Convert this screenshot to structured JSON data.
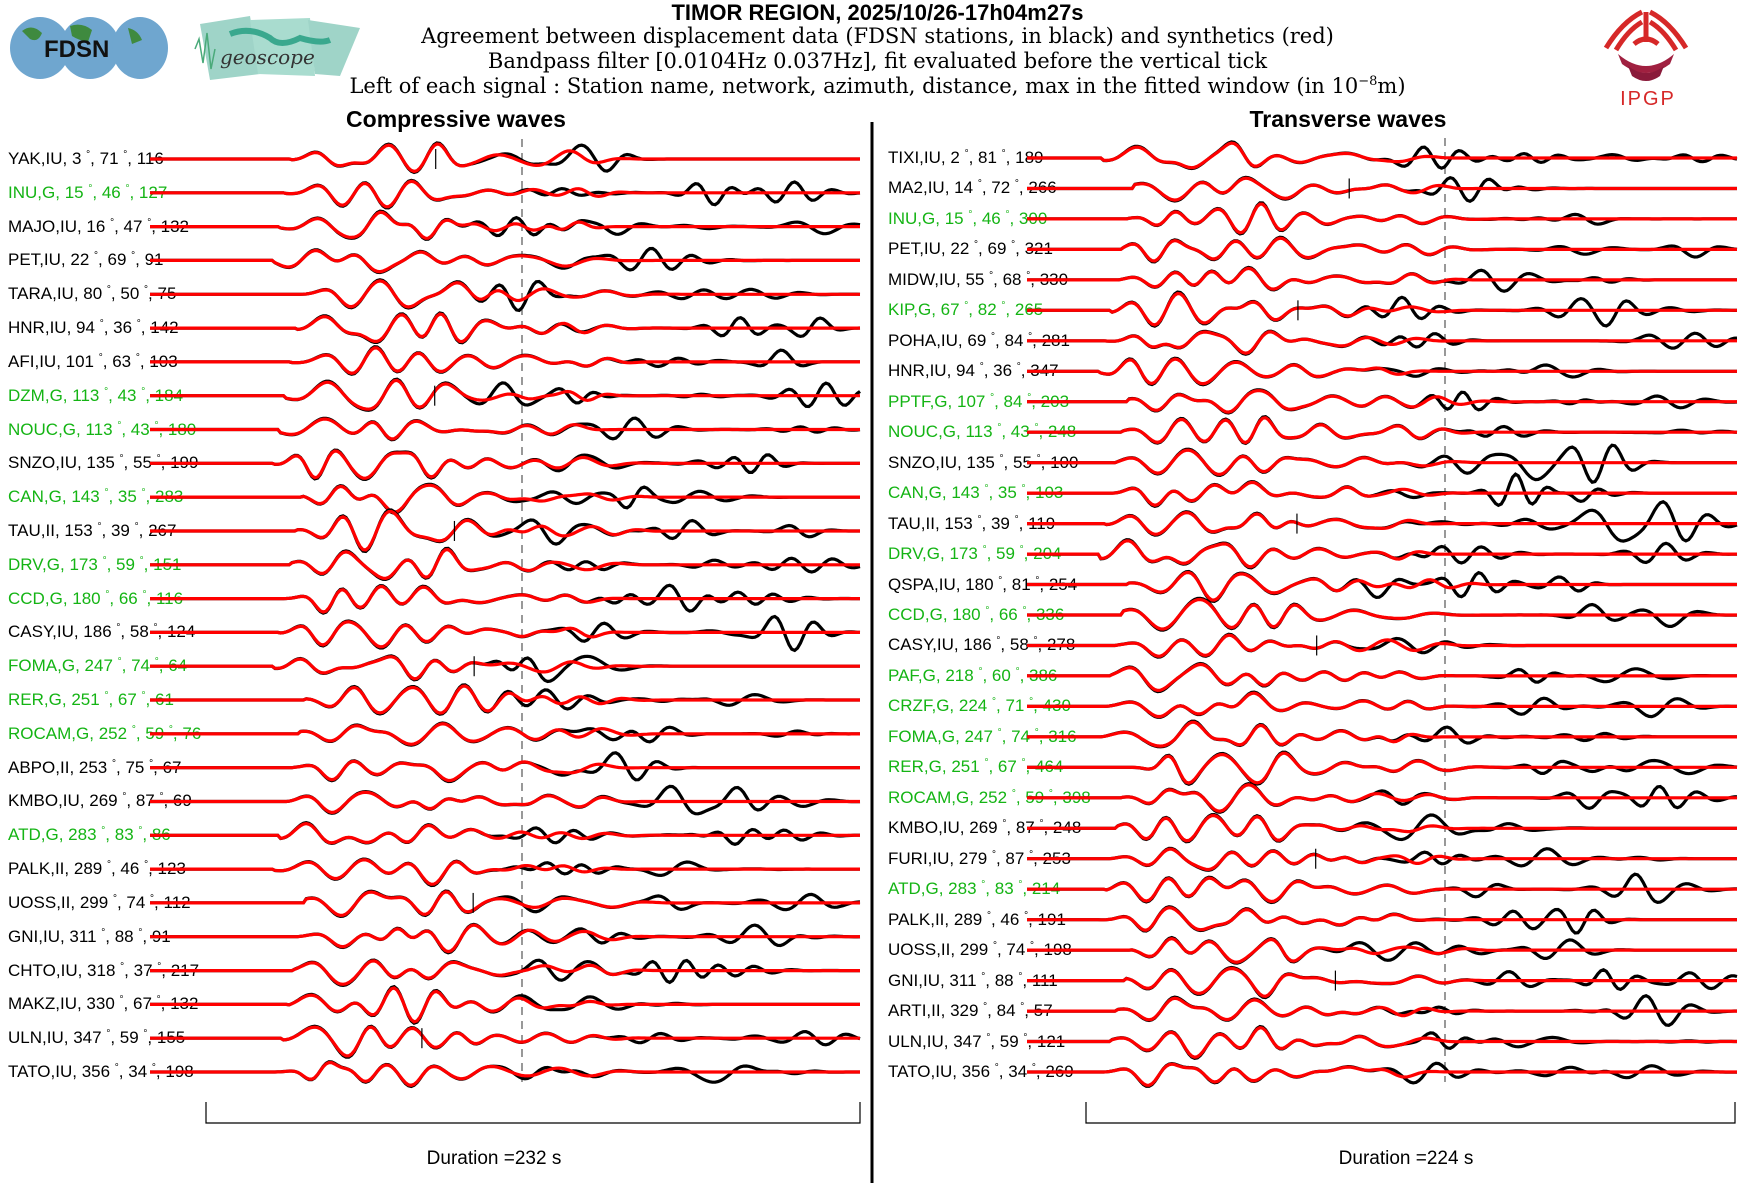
{
  "header": {
    "title": "TIMOR REGION, 2025/10/26-17h04m27s",
    "line1": "Agreement between displacement data (FDSN stations, in black) and synthetics (red)",
    "line2": "Bandpass filter [0.0104Hz 0.037Hz], fit evaluated before the vertical tick",
    "line3_pre": "Left of each signal : Station name, network, azimuth, distance, max in the fitted window (in 10",
    "line3_exp": "−8",
    "line3_post": "m)"
  },
  "logos": {
    "fdsn": "FDSN",
    "geoscope": "geoscope",
    "ipgp": "IPGP"
  },
  "colors": {
    "data": "#000000",
    "synthetic": "#ff0000",
    "geoscope_network": "#14b414"
  },
  "chart_data": [
    {
      "type": "line",
      "title": "Compressive waves",
      "duration_label": "Duration =232 s",
      "stations": [
        {
          "name": "YAK",
          "net": "IU",
          "az": 3,
          "dist": 71,
          "max": 116
        },
        {
          "name": "INU",
          "net": "G",
          "az": 15,
          "dist": 46,
          "max": 127
        },
        {
          "name": "MAJO",
          "net": "IU",
          "az": 16,
          "dist": 47,
          "max": 132
        },
        {
          "name": "PET",
          "net": "IU",
          "az": 22,
          "dist": 69,
          "max": 91
        },
        {
          "name": "TARA",
          "net": "IU",
          "az": 80,
          "dist": 50,
          "max": 75
        },
        {
          "name": "HNR",
          "net": "IU",
          "az": 94,
          "dist": 36,
          "max": 142
        },
        {
          "name": "AFI",
          "net": "IU",
          "az": 101,
          "dist": 63,
          "max": 103
        },
        {
          "name": "DZM",
          "net": "G",
          "az": 113,
          "dist": 43,
          "max": 184
        },
        {
          "name": "NOUC",
          "net": "G",
          "az": 113,
          "dist": 43,
          "max": 180
        },
        {
          "name": "SNZO",
          "net": "IU",
          "az": 135,
          "dist": 55,
          "max": 199
        },
        {
          "name": "CAN",
          "net": "G",
          "az": 143,
          "dist": 35,
          "max": 283
        },
        {
          "name": "TAU",
          "net": "II",
          "az": 153,
          "dist": 39,
          "max": 267
        },
        {
          "name": "DRV",
          "net": "G",
          "az": 173,
          "dist": 59,
          "max": 151
        },
        {
          "name": "CCD",
          "net": "G",
          "az": 180,
          "dist": 66,
          "max": 116
        },
        {
          "name": "CASY",
          "net": "IU",
          "az": 186,
          "dist": 58,
          "max": 124
        },
        {
          "name": "FOMA",
          "net": "G",
          "az": 247,
          "dist": 74,
          "max": 64
        },
        {
          "name": "RER",
          "net": "G",
          "az": 251,
          "dist": 67,
          "max": 61
        },
        {
          "name": "ROCAM",
          "net": "G",
          "az": 252,
          "dist": 59,
          "max": 76
        },
        {
          "name": "ABPO",
          "net": "II",
          "az": 253,
          "dist": 75,
          "max": 67
        },
        {
          "name": "KMBO",
          "net": "IU",
          "az": 269,
          "dist": 87,
          "max": 69
        },
        {
          "name": "ATD",
          "net": "G",
          "az": 283,
          "dist": 83,
          "max": 86
        },
        {
          "name": "PALK",
          "net": "II",
          "az": 289,
          "dist": 46,
          "max": 123
        },
        {
          "name": "UOSS",
          "net": "II",
          "az": 299,
          "dist": 74,
          "max": 112
        },
        {
          "name": "GNI",
          "net": "IU",
          "az": 311,
          "dist": 88,
          "max": 91
        },
        {
          "name": "CHTO",
          "net": "IU",
          "az": 318,
          "dist": 37,
          "max": 217
        },
        {
          "name": "MAKZ",
          "net": "IU",
          "az": 330,
          "dist": 67,
          "max": 132
        },
        {
          "name": "ULN",
          "net": "IU",
          "az": 347,
          "dist": 59,
          "max": 155
        },
        {
          "name": "TATO",
          "net": "IU",
          "az": 356,
          "dist": 34,
          "max": 198
        }
      ]
    },
    {
      "type": "line",
      "title": "Transverse waves",
      "duration_label": "Duration =224 s",
      "stations": [
        {
          "name": "TIXI",
          "net": "IU",
          "az": 2,
          "dist": 81,
          "max": 189
        },
        {
          "name": "MA2",
          "net": "IU",
          "az": 14,
          "dist": 72,
          "max": 266
        },
        {
          "name": "INU",
          "net": "G",
          "az": 15,
          "dist": 46,
          "max": 300
        },
        {
          "name": "PET",
          "net": "IU",
          "az": 22,
          "dist": 69,
          "max": 321
        },
        {
          "name": "MIDW",
          "net": "IU",
          "az": 55,
          "dist": 68,
          "max": 330
        },
        {
          "name": "KIP",
          "net": "G",
          "az": 67,
          "dist": 82,
          "max": 265
        },
        {
          "name": "POHA",
          "net": "IU",
          "az": 69,
          "dist": 84,
          "max": 281
        },
        {
          "name": "HNR",
          "net": "IU",
          "az": 94,
          "dist": 36,
          "max": 347
        },
        {
          "name": "PPTF",
          "net": "G",
          "az": 107,
          "dist": 84,
          "max": 203
        },
        {
          "name": "NOUC",
          "net": "G",
          "az": 113,
          "dist": 43,
          "max": 248
        },
        {
          "name": "SNZO",
          "net": "IU",
          "az": 135,
          "dist": 55,
          "max": 100
        },
        {
          "name": "CAN",
          "net": "G",
          "az": 143,
          "dist": 35,
          "max": 103
        },
        {
          "name": "TAU",
          "net": "II",
          "az": 153,
          "dist": 39,
          "max": 119
        },
        {
          "name": "DRV",
          "net": "G",
          "az": 173,
          "dist": 59,
          "max": 204
        },
        {
          "name": "QSPA",
          "net": "IU",
          "az": 180,
          "dist": 81,
          "max": 254
        },
        {
          "name": "CCD",
          "net": "G",
          "az": 180,
          "dist": 66,
          "max": 336
        },
        {
          "name": "CASY",
          "net": "IU",
          "az": 186,
          "dist": 58,
          "max": 278
        },
        {
          "name": "PAF",
          "net": "G",
          "az": 218,
          "dist": 60,
          "max": 386
        },
        {
          "name": "CRZF",
          "net": "G",
          "az": 224,
          "dist": 71,
          "max": 430
        },
        {
          "name": "FOMA",
          "net": "G",
          "az": 247,
          "dist": 74,
          "max": 316
        },
        {
          "name": "RER",
          "net": "G",
          "az": 251,
          "dist": 67,
          "max": 464
        },
        {
          "name": "ROCAM",
          "net": "G",
          "az": 252,
          "dist": 59,
          "max": 398
        },
        {
          "name": "KMBO",
          "net": "IU",
          "az": 269,
          "dist": 87,
          "max": 248
        },
        {
          "name": "FURI",
          "net": "IU",
          "az": 279,
          "dist": 87,
          "max": 253
        },
        {
          "name": "ATD",
          "net": "G",
          "az": 283,
          "dist": 83,
          "max": 214
        },
        {
          "name": "PALK",
          "net": "II",
          "az": 289,
          "dist": 46,
          "max": 191
        },
        {
          "name": "UOSS",
          "net": "II",
          "az": 299,
          "dist": 74,
          "max": 198
        },
        {
          "name": "GNI",
          "net": "IU",
          "az": 311,
          "dist": 88,
          "max": 111
        },
        {
          "name": "ARTI",
          "net": "II",
          "az": 329,
          "dist": 84,
          "max": 57
        },
        {
          "name": "ULN",
          "net": "IU",
          "az": 347,
          "dist": 59,
          "max": 121
        },
        {
          "name": "TATO",
          "net": "IU",
          "az": 356,
          "dist": 34,
          "max": 269
        }
      ]
    }
  ]
}
